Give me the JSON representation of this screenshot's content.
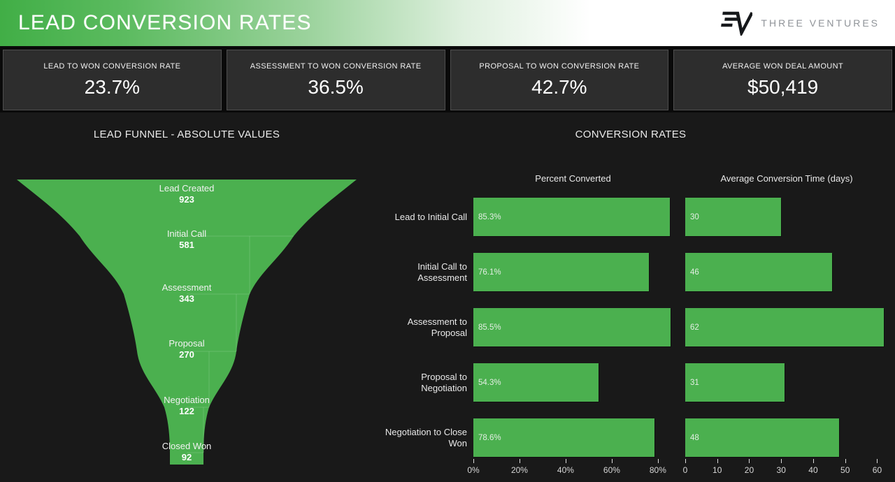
{
  "header": {
    "title": "LEAD CONVERSION RATES",
    "brand": {
      "name": "THREE VENTURES"
    }
  },
  "kpis": [
    {
      "label": "LEAD TO WON CONVERSION RATE",
      "value": "23.7%"
    },
    {
      "label": "ASSESSMENT TO WON CONVERSION RATE",
      "value": "36.5%"
    },
    {
      "label": "PROPOSAL TO WON CONVERSION RATE",
      "value": "42.7%"
    },
    {
      "label": "AVERAGE WON DEAL AMOUNT",
      "value": "$50,419"
    }
  ],
  "colors": {
    "accent_green": "#4bb04f",
    "background": "#191919",
    "card": "#2d2d2d",
    "card_border": "#4e4e4e",
    "header_gradient_start": "#41ae46",
    "header_gradient_end": "#ffffff"
  },
  "chart_data": [
    {
      "type": "funnel",
      "title": "LEAD FUNNEL - ABSOLUTE VALUES",
      "stages": [
        "Lead Created",
        "Initial Call",
        "Assessment",
        "Proposal",
        "Negotiation",
        "Closed Won"
      ],
      "values": [
        923,
        581,
        343,
        270,
        122,
        92
      ],
      "color": "#4bb04f"
    },
    {
      "type": "bar",
      "title": "CONVERSION RATES",
      "orientation": "horizontal",
      "grid": false,
      "legend_position": "none",
      "categories": [
        "Lead to Initial Call",
        "Initial Call to Assessment",
        "Assessment to Proposal",
        "Proposal to Negotiation",
        "Negotiation to Close Won"
      ],
      "series": [
        {
          "name": "Percent Converted",
          "values": [
            85.3,
            76.1,
            85.5,
            54.3,
            78.6
          ],
          "labels": [
            "85.3%",
            "76.1%",
            "85.5%",
            "54.3%",
            "78.6%"
          ],
          "xlim": [
            0,
            86.4
          ],
          "ticks": [
            "0%",
            "20%",
            "40%",
            "60%",
            "80%"
          ],
          "tick_values": [
            0,
            20,
            40,
            60,
            80
          ]
        },
        {
          "name": "Average Conversion Time (days)",
          "values": [
            30,
            46,
            62,
            31,
            48
          ],
          "labels": [
            "30",
            "46",
            "62",
            "31",
            "48"
          ],
          "xlim": [
            0,
            62.3
          ],
          "ticks": [
            "0",
            "10",
            "20",
            "30",
            "40",
            "50",
            "60"
          ],
          "tick_values": [
            0,
            10,
            20,
            30,
            40,
            50,
            60
          ]
        }
      ]
    }
  ]
}
